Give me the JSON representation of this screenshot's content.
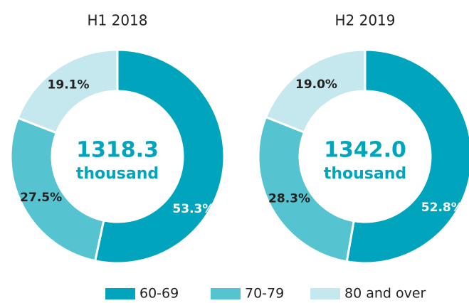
{
  "chart_data": [
    {
      "type": "pie",
      "donut": true,
      "title": "H1 2018",
      "categories": [
        "60-69",
        "70-79",
        "80 and over"
      ],
      "values": [
        53.3,
        27.5,
        19.1
      ],
      "value_labels": [
        "53.3%",
        "27.5%",
        "19.1%"
      ],
      "colors": [
        "#00a5bd",
        "#55c4d0",
        "#c5e8ef"
      ],
      "center_label": "1318.3",
      "center_unit": "thousand"
    },
    {
      "type": "pie",
      "donut": true,
      "title": "H2 2019",
      "categories": [
        "60-69",
        "70-79",
        "80 and over"
      ],
      "values": [
        52.8,
        28.3,
        19.0
      ],
      "value_labels": [
        "52.8%",
        "28.3%",
        "19.0%"
      ],
      "colors": [
        "#00a5bd",
        "#55c4d0",
        "#c5e8ef"
      ],
      "center_label": "1342.0",
      "center_unit": "thousand"
    }
  ]
}
